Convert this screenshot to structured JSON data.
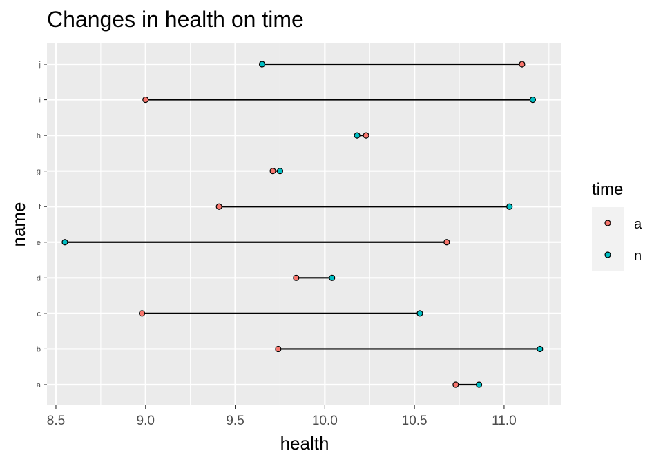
{
  "chart_data": {
    "type": "dumbbell",
    "title": "Changes in health on time",
    "xlabel": "health",
    "ylabel": "name",
    "xlim": [
      8.45,
      11.32
    ],
    "xticks": [
      "8.5",
      "9.0",
      "9.5",
      "10.0",
      "10.5",
      "11.0"
    ],
    "categories": [
      "a",
      "b",
      "c",
      "d",
      "e",
      "f",
      "g",
      "h",
      "i",
      "j"
    ],
    "grid": true,
    "legend": {
      "title": "time",
      "position": "right"
    },
    "series": [
      {
        "name": "a",
        "color": "#F8766D",
        "values": [
          10.73,
          9.74,
          8.98,
          9.84,
          10.68,
          9.41,
          9.71,
          10.23,
          9.0,
          11.1
        ]
      },
      {
        "name": "n",
        "color": "#00BFC4",
        "values": [
          10.86,
          11.2,
          10.53,
          10.04,
          8.55,
          11.03,
          9.75,
          10.18,
          11.16,
          9.65
        ]
      }
    ]
  }
}
